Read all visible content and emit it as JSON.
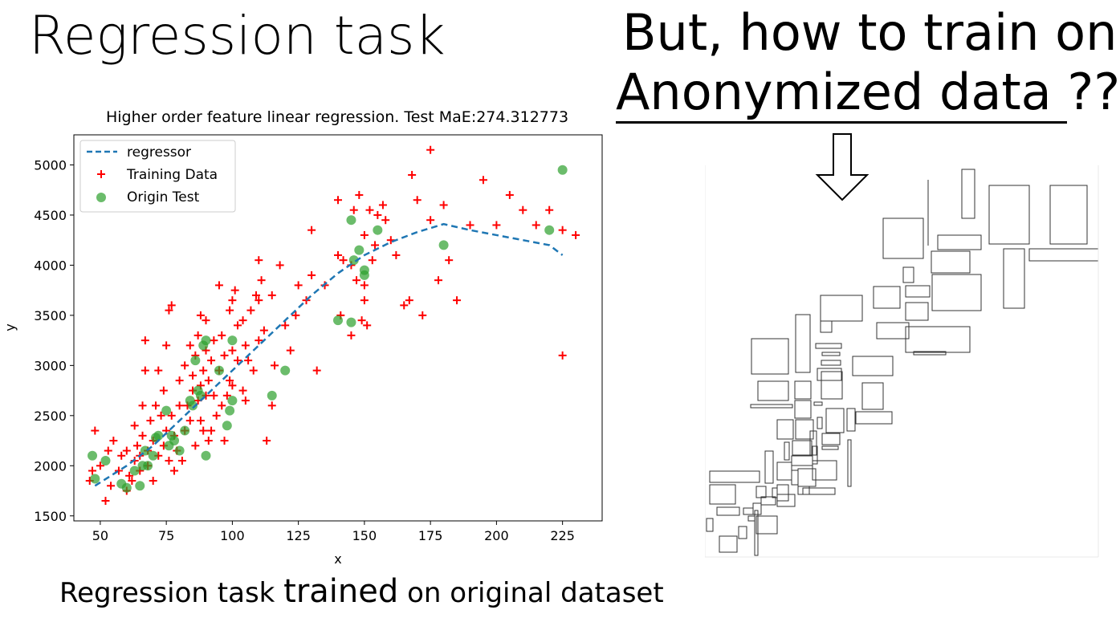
{
  "slide": {
    "title": "Regression task",
    "question_line1": "But, how to train on",
    "question_line2_underlined": "Anonymized data ",
    "question_line2_tail": "??",
    "caption_pre": "Regression task  ",
    "caption_emph": "trained",
    "caption_post": " on original dataset",
    "arrow_icon": "down-arrow-icon",
    "anonymized_panel": "anonymized-rectangles"
  },
  "chart_data": {
    "type": "scatter",
    "title": "Higher order feature linear regression. Test MaE:274.312773",
    "xlabel": "x",
    "ylabel": "y",
    "xlim": [
      40,
      240
    ],
    "ylim": [
      1450,
      5300
    ],
    "xticks": [
      50,
      75,
      100,
      125,
      150,
      175,
      200,
      225
    ],
    "yticks": [
      1500,
      2000,
      2500,
      3000,
      3500,
      4000,
      4500,
      5000
    ],
    "grid": false,
    "legend_position": "top-left",
    "series": [
      {
        "name": "regressor",
        "kind": "line",
        "style": "dashed",
        "color": "#1f77b4",
        "x": [
          48,
          60,
          70,
          80,
          90,
          100,
          110,
          120,
          130,
          140,
          150,
          160,
          170,
          180,
          190,
          200,
          210,
          220,
          225
        ],
        "y": [
          1800,
          2000,
          2200,
          2450,
          2700,
          2950,
          3200,
          3450,
          3700,
          3920,
          4100,
          4230,
          4330,
          4410,
          4350,
          4300,
          4250,
          4200,
          4100
        ]
      },
      {
        "name": "Training Data",
        "kind": "scatter",
        "marker": "plus",
        "color": "#ff0000",
        "x": [
          46,
          47,
          48,
          50,
          52,
          53,
          54,
          55,
          57,
          58,
          60,
          60,
          61,
          62,
          63,
          63,
          64,
          65,
          65,
          66,
          66,
          67,
          67,
          68,
          68,
          69,
          70,
          70,
          71,
          72,
          72,
          73,
          74,
          74,
          75,
          75,
          76,
          76,
          77,
          77,
          78,
          78,
          79,
          80,
          80,
          81,
          82,
          82,
          83,
          84,
          84,
          85,
          85,
          86,
          86,
          87,
          87,
          88,
          88,
          88,
          89,
          89,
          90,
          90,
          90,
          91,
          91,
          92,
          92,
          93,
          93,
          94,
          95,
          95,
          96,
          96,
          97,
          97,
          98,
          99,
          99,
          100,
          100,
          100,
          101,
          102,
          102,
          104,
          104,
          105,
          105,
          106,
          107,
          108,
          109,
          110,
          110,
          110,
          111,
          112,
          113,
          115,
          115,
          116,
          118,
          120,
          122,
          124,
          125,
          128,
          130,
          130,
          132,
          135,
          140,
          140,
          141,
          142,
          145,
          145,
          146,
          147,
          148,
          149,
          150,
          150,
          150,
          151,
          152,
          153,
          154,
          155,
          157,
          158,
          160,
          162,
          165,
          167,
          168,
          170,
          172,
          175,
          175,
          178,
          180,
          182,
          185,
          190,
          195,
          200,
          205,
          210,
          215,
          220,
          225,
          225,
          230
        ],
        "y": [
          1850,
          1950,
          2350,
          2000,
          1650,
          2150,
          1800,
          2250,
          1950,
          2100,
          1750,
          2150,
          1900,
          1850,
          2050,
          2400,
          2200,
          1950,
          2100,
          2300,
          2600,
          3250,
          2950,
          2000,
          2150,
          2450,
          1850,
          2250,
          2600,
          2100,
          2950,
          2500,
          2750,
          2200,
          3200,
          2350,
          2050,
          3550,
          2500,
          3600,
          2300,
          1950,
          2150,
          2850,
          2600,
          2050,
          3000,
          2350,
          2600,
          3200,
          2450,
          2750,
          2900,
          3100,
          2200,
          2650,
          3300,
          2450,
          2800,
          3500,
          2950,
          2350,
          2700,
          3150,
          3450,
          2250,
          2850,
          3050,
          2350,
          2700,
          3250,
          2500,
          2950,
          3800,
          2600,
          3300,
          2250,
          3100,
          2700,
          3550,
          2850,
          3650,
          3150,
          2800,
          3750,
          3400,
          3050,
          2750,
          3450,
          2650,
          3200,
          3050,
          3550,
          2950,
          3700,
          3250,
          4050,
          3650,
          3850,
          3350,
          2250,
          3700,
          2600,
          3000,
          4000,
          3400,
          3150,
          3500,
          3800,
          3650,
          4350,
          3900,
          2950,
          3800,
          4650,
          4100,
          3500,
          4050,
          4000,
          3300,
          4550,
          3850,
          4700,
          3450,
          3800,
          3650,
          4300,
          3400,
          4550,
          4050,
          4200,
          4500,
          4600,
          4450,
          4250,
          4100,
          3600,
          3650,
          4900,
          4650,
          3500,
          5150,
          4450,
          3850,
          4600,
          4050,
          3650,
          4400,
          4850,
          4400,
          4700,
          4550,
          4400,
          4550,
          4350,
          3100,
          4300
        ]
      },
      {
        "name": "Origin Test",
        "kind": "scatter",
        "marker": "circle",
        "color": "#2ca02c",
        "x": [
          47,
          48,
          52,
          58,
          60,
          63,
          65,
          66,
          67,
          68,
          70,
          71,
          72,
          75,
          76,
          77,
          78,
          80,
          82,
          84,
          85,
          86,
          87,
          88,
          89,
          90,
          90,
          95,
          98,
          99,
          100,
          100,
          115,
          120,
          140,
          145,
          145,
          146,
          148,
          150,
          150,
          155,
          180,
          220,
          225
        ],
        "y": [
          2100,
          1870,
          2050,
          1820,
          1780,
          1950,
          1800,
          2000,
          2150,
          2000,
          2100,
          2280,
          2300,
          2550,
          2200,
          2300,
          2250,
          2150,
          2350,
          2650,
          2600,
          3050,
          2750,
          2700,
          3200,
          3250,
          2100,
          2950,
          2400,
          2550,
          3250,
          2650,
          2700,
          2950,
          3450,
          3430,
          4450,
          4050,
          4150,
          3950,
          3900,
          4350,
          4200,
          4350,
          4950
        ]
      }
    ]
  }
}
